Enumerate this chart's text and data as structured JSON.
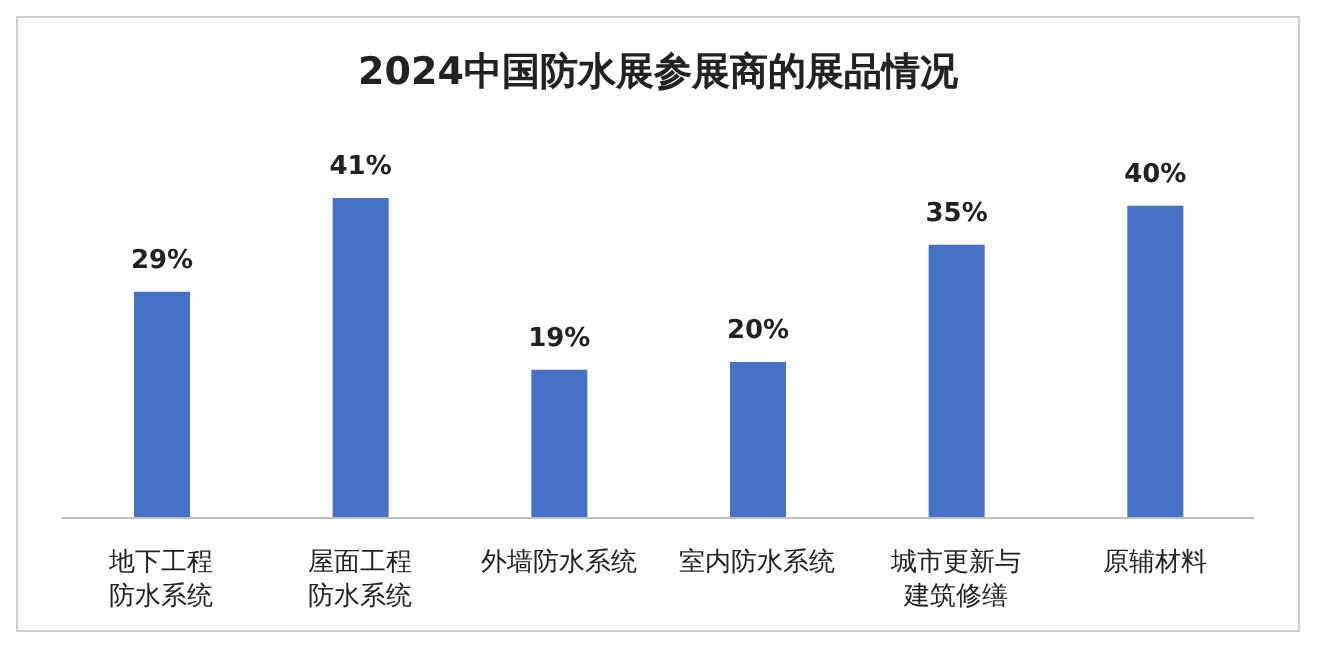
{
  "chart_data": {
    "type": "bar",
    "title": "2024中国防水展参展商的展品情况",
    "categories": [
      "地下工程防水系统",
      "屋面工程防水系统",
      "外墙防水系统",
      "室内防水系统",
      "城市更新与建筑修缮",
      "原辅材料"
    ],
    "values": [
      29,
      41,
      19,
      20,
      35,
      40
    ],
    "value_labels": [
      "29%",
      "41%",
      "19%",
      "20%",
      "35%",
      "40%"
    ],
    "color": "#4472c4",
    "grid": false,
    "legend": false
  }
}
